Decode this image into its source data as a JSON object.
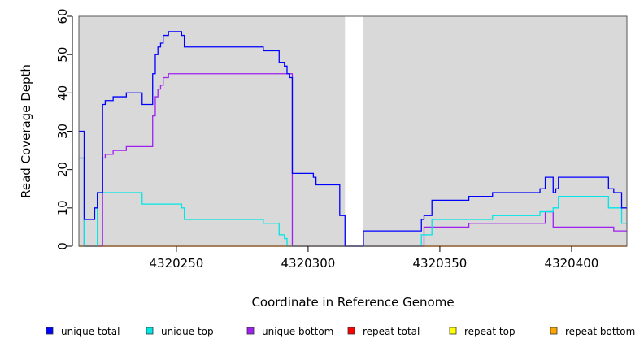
{
  "chart_data": {
    "type": "line",
    "xlabel": "Coordinate in Reference Genome",
    "ylabel": "Read Coverage Depth",
    "xlim": [
      4320213,
      4320421
    ],
    "ylim": [
      0,
      60
    ],
    "x_ticks": [
      4320250,
      4320300,
      4320350,
      4320400
    ],
    "x_tick_labels": [
      "4320250",
      "4320300",
      "4320350",
      "4320400"
    ],
    "y_ticks": [
      0,
      10,
      20,
      30,
      40,
      50,
      60
    ],
    "y_tick_labels": [
      "0",
      "10",
      "20",
      "30",
      "40",
      "50",
      "60"
    ],
    "background_color": "#d9d9d9",
    "gap": {
      "x_start": 4320314,
      "x_end": 4320321
    },
    "legend_position": "bottom",
    "series": [
      {
        "name": "unique total",
        "color": "#0000ff",
        "step": true,
        "points": [
          [
            4320213,
            30
          ],
          [
            4320215,
            7
          ],
          [
            4320219,
            10
          ],
          [
            4320220,
            14
          ],
          [
            4320222,
            37
          ],
          [
            4320223,
            38
          ],
          [
            4320226,
            39
          ],
          [
            4320231,
            40
          ],
          [
            4320237,
            37
          ],
          [
            4320241,
            45
          ],
          [
            4320242,
            50
          ],
          [
            4320243,
            52
          ],
          [
            4320244,
            53
          ],
          [
            4320245,
            55
          ],
          [
            4320247,
            56
          ],
          [
            4320252,
            55
          ],
          [
            4320253,
            52
          ],
          [
            4320270,
            52
          ],
          [
            4320283,
            51
          ],
          [
            4320289,
            48
          ],
          [
            4320291,
            47
          ],
          [
            4320292,
            45
          ],
          [
            4320293,
            44
          ],
          [
            4320294,
            19
          ],
          [
            4320302,
            18
          ],
          [
            4320303,
            16
          ],
          [
            4320312,
            8
          ],
          [
            4320314,
            0
          ],
          [
            4320321,
            4
          ],
          [
            4320343,
            7
          ],
          [
            4320344,
            8
          ],
          [
            4320347,
            12
          ],
          [
            4320361,
            13
          ],
          [
            4320370,
            14
          ],
          [
            4320388,
            15
          ],
          [
            4320390,
            18
          ],
          [
            4320393,
            14
          ],
          [
            4320394,
            15
          ],
          [
            4320395,
            18
          ],
          [
            4320414,
            15
          ],
          [
            4320416,
            14
          ],
          [
            4320419,
            10
          ],
          [
            4320421,
            10
          ]
        ]
      },
      {
        "name": "unique top",
        "color": "#00e5e5",
        "step": true,
        "points": [
          [
            4320213,
            23
          ],
          [
            4320215,
            0
          ],
          [
            4320220,
            14
          ],
          [
            4320237,
            11
          ],
          [
            4320252,
            10
          ],
          [
            4320253,
            7
          ],
          [
            4320270,
            7
          ],
          [
            4320283,
            6
          ],
          [
            4320289,
            3
          ],
          [
            4320291,
            2
          ],
          [
            4320292,
            0
          ],
          [
            4320343,
            3
          ],
          [
            4320347,
            7
          ],
          [
            4320370,
            8
          ],
          [
            4320388,
            9
          ],
          [
            4320393,
            10
          ],
          [
            4320395,
            13
          ],
          [
            4320414,
            10
          ],
          [
            4320419,
            6
          ],
          [
            4320421,
            6
          ]
        ]
      },
      {
        "name": "unique bottom",
        "color": "#a020f0",
        "step": true,
        "points": [
          [
            4320213,
            23
          ],
          [
            4320215,
            0
          ],
          [
            4320222,
            23
          ],
          [
            4320223,
            24
          ],
          [
            4320226,
            25
          ],
          [
            4320231,
            26
          ],
          [
            4320241,
            34
          ],
          [
            4320242,
            39
          ],
          [
            4320243,
            41
          ],
          [
            4320244,
            42
          ],
          [
            4320245,
            44
          ],
          [
            4320247,
            45
          ],
          [
            4320294,
            0
          ],
          [
            4320344,
            5
          ],
          [
            4320361,
            6
          ],
          [
            4320388,
            6
          ],
          [
            4320390,
            9
          ],
          [
            4320393,
            5
          ],
          [
            4320416,
            4
          ],
          [
            4320421,
            4
          ]
        ]
      },
      {
        "name": "repeat total",
        "color": "#ff0000",
        "step": true,
        "points": [
          [
            4320213,
            0
          ],
          [
            4320421,
            0
          ]
        ]
      },
      {
        "name": "repeat top",
        "color": "#ffff00",
        "step": true,
        "points": [
          [
            4320213,
            0
          ],
          [
            4320421,
            0
          ]
        ]
      },
      {
        "name": "repeat bottom",
        "color": "#ffa500",
        "step": true,
        "points": [
          [
            4320213,
            0
          ],
          [
            4320421,
            0
          ]
        ]
      }
    ]
  }
}
